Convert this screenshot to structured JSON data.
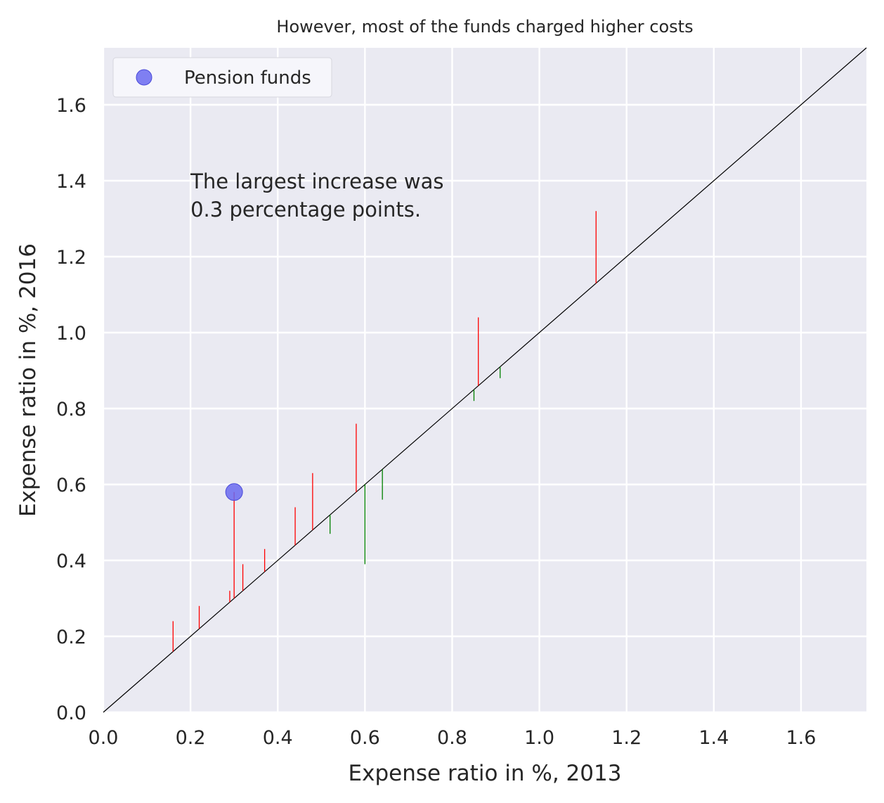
{
  "chart_data": {
    "type": "scatter",
    "title": "However, most of the funds charged higher costs",
    "xlabel": "Expense ratio in %, 2013",
    "ylabel": "Expense ratio in %, 2016",
    "xlim": [
      0.0,
      1.75
    ],
    "ylim": [
      0.0,
      1.75
    ],
    "xticks": [
      "0.0",
      "0.2",
      "0.4",
      "0.6",
      "0.8",
      "1.0",
      "1.2",
      "1.4",
      "1.6"
    ],
    "yticks": [
      "0.0",
      "0.2",
      "0.4",
      "0.6",
      "0.8",
      "1.0",
      "1.2",
      "1.4",
      "1.6"
    ],
    "xtick_values": [
      0.0,
      0.2,
      0.4,
      0.6,
      0.8,
      1.0,
      1.2,
      1.4,
      1.6
    ],
    "ytick_values": [
      0.0,
      0.2,
      0.4,
      0.6,
      0.8,
      1.0,
      1.2,
      1.4,
      1.6
    ],
    "grid": true,
    "background_color": "#eaeaf2",
    "diagonal_line": {
      "from": [
        0.0,
        0.0
      ],
      "to": [
        1.75,
        1.75
      ],
      "color": "#000000"
    },
    "legend": {
      "placement": "top-left",
      "entries": [
        "Pension funds"
      ]
    },
    "series": [
      {
        "name": "Pension funds",
        "type": "scatter",
        "color": "#6a6af0",
        "points": [
          {
            "x": 0.3,
            "y": 0.58
          }
        ]
      },
      {
        "type": "segments",
        "increase_color": "#ff0000",
        "decrease_color": "#008000",
        "segments": [
          {
            "x": 0.16,
            "y2013": 0.16,
            "y2016": 0.24
          },
          {
            "x": 0.22,
            "y2013": 0.22,
            "y2016": 0.28
          },
          {
            "x": 0.29,
            "y2013": 0.29,
            "y2016": 0.32
          },
          {
            "x": 0.3,
            "y2013": 0.3,
            "y2016": 0.58
          },
          {
            "x": 0.32,
            "y2013": 0.32,
            "y2016": 0.39
          },
          {
            "x": 0.37,
            "y2013": 0.37,
            "y2016": 0.43
          },
          {
            "x": 0.44,
            "y2013": 0.44,
            "y2016": 0.54
          },
          {
            "x": 0.48,
            "y2013": 0.48,
            "y2016": 0.63
          },
          {
            "x": 0.52,
            "y2013": 0.52,
            "y2016": 0.47
          },
          {
            "x": 0.58,
            "y2013": 0.58,
            "y2016": 0.76
          },
          {
            "x": 0.6,
            "y2013": 0.6,
            "y2016": 0.39
          },
          {
            "x": 0.64,
            "y2013": 0.64,
            "y2016": 0.56
          },
          {
            "x": 0.85,
            "y2013": 0.85,
            "y2016": 0.82
          },
          {
            "x": 0.86,
            "y2013": 0.86,
            "y2016": 1.04
          },
          {
            "x": 0.91,
            "y2013": 0.91,
            "y2016": 0.88
          },
          {
            "x": 1.13,
            "y2013": 1.13,
            "y2016": 1.32
          }
        ]
      }
    ],
    "annotation": {
      "lines": [
        "The largest increase was",
        "0.3 percentage points."
      ],
      "x": 0.2,
      "y": 1.38
    }
  }
}
